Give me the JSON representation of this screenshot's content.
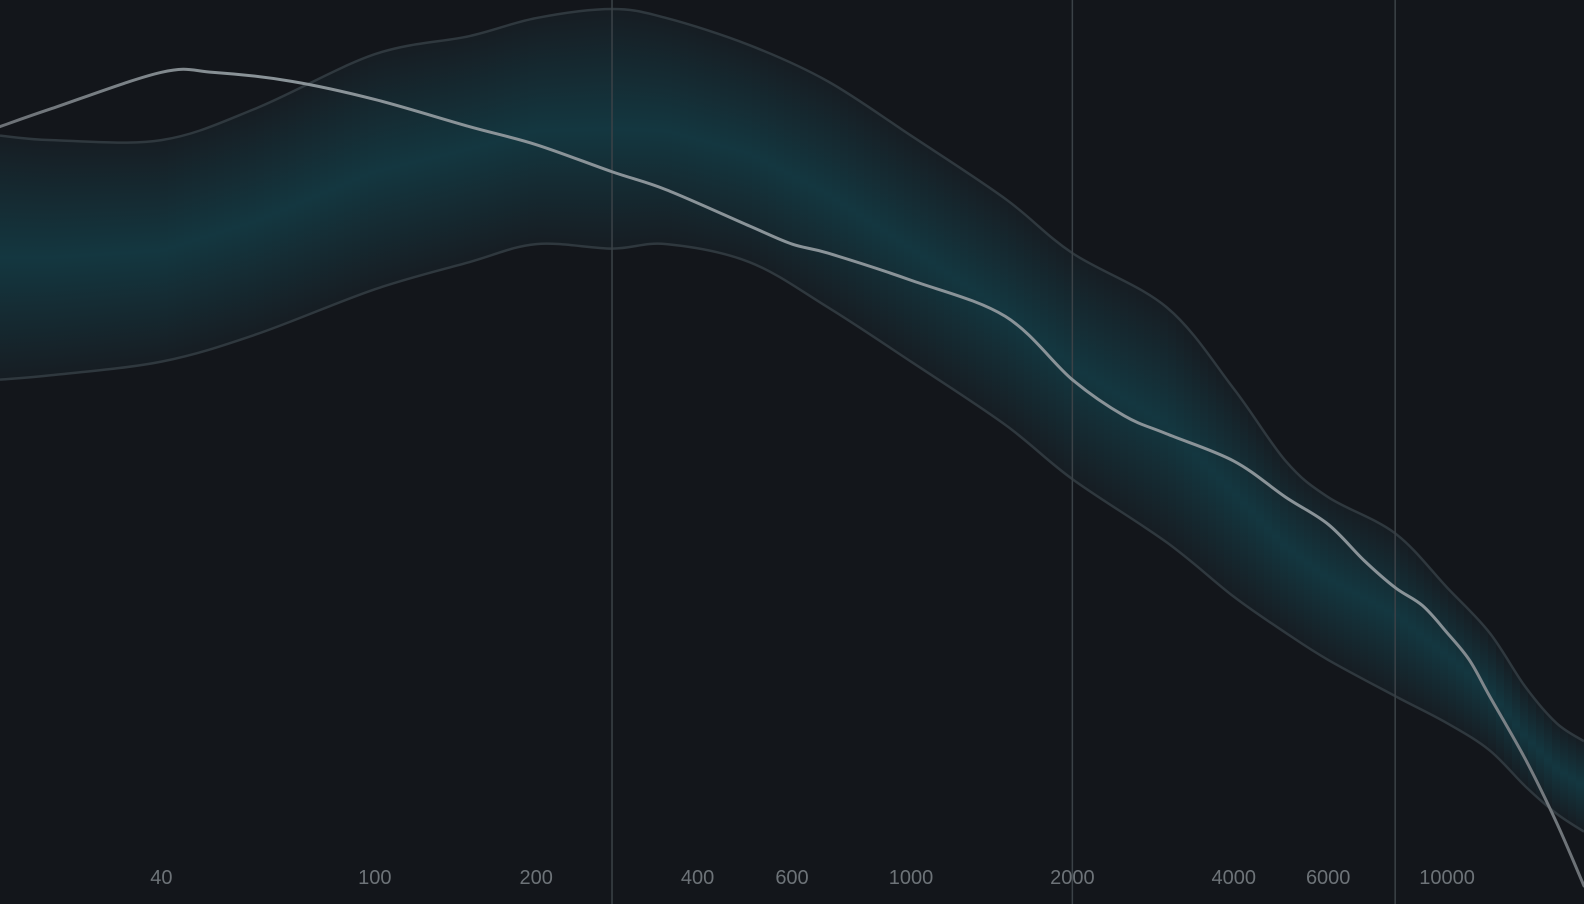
{
  "colors": {
    "background": "#13161b",
    "band_fill_center": "#143740",
    "band_fill_edge": "#161d23",
    "band_edge": "#2f383e",
    "measured_line": "#8a9398",
    "measured_line_tail": "#6b7075",
    "marker_line": "#3b4247",
    "tick_text": "#6d7378"
  },
  "chart_data": {
    "type": "line",
    "title": "",
    "xlabel": "",
    "ylabel": "",
    "x_scale": "log",
    "xlim": [
      20,
      18000
    ],
    "ylim": [
      -100,
      0
    ],
    "grid": false,
    "x_ticks": [
      "40",
      "100",
      "200",
      "400",
      "600",
      "1000",
      "2000",
      "4000",
      "6000",
      "10000"
    ],
    "x_tick_values": [
      40,
      100,
      200,
      400,
      600,
      1000,
      2000,
      4000,
      6000,
      10000
    ],
    "markers": [
      277,
      2000,
      8000
    ],
    "band": {
      "x": [
        20,
        25,
        40,
        60,
        100,
        150,
        200,
        277,
        350,
        500,
        700,
        1000,
        1500,
        2000,
        3000,
        4000,
        5000,
        6000,
        8000,
        10000,
        12000,
        14000,
        16000,
        18000
      ],
      "upper": [
        -15,
        -15.5,
        -15.5,
        -12,
        -6,
        -4,
        -2,
        -1,
        -2,
        -5,
        -9,
        -15,
        -22,
        -28,
        -34,
        -43,
        -51,
        -55,
        -59,
        -65,
        -70,
        -76,
        -80,
        -82
      ],
      "lower": [
        -42,
        -41.5,
        -40,
        -37,
        -32,
        -29,
        -27,
        -27.5,
        -27,
        -29,
        -34,
        -40,
        -47,
        -53,
        -60,
        -66,
        -70,
        -73,
        -77,
        -80,
        -83,
        -87,
        -90,
        -92
      ]
    },
    "series": [
      {
        "x": [
          20,
          25,
          40,
          50,
          70,
          100,
          150,
          200,
          277,
          350,
          500,
          600,
          700,
          1000,
          1500,
          2000,
          2500,
          3000,
          4000,
          5000,
          6000,
          7000,
          8000,
          9000,
          10000,
          11000,
          12000,
          14000,
          16000,
          18000
        ],
        "values": [
          -14,
          -12,
          -8,
          -8,
          -9,
          -11,
          -14,
          -16,
          -19,
          -21,
          -25,
          -27,
          -28,
          -31,
          -35,
          -42,
          -46,
          -48,
          -51,
          -55,
          -58,
          -62,
          -65,
          -67,
          -70,
          -73,
          -77,
          -84,
          -91,
          -98
        ]
      }
    ]
  }
}
